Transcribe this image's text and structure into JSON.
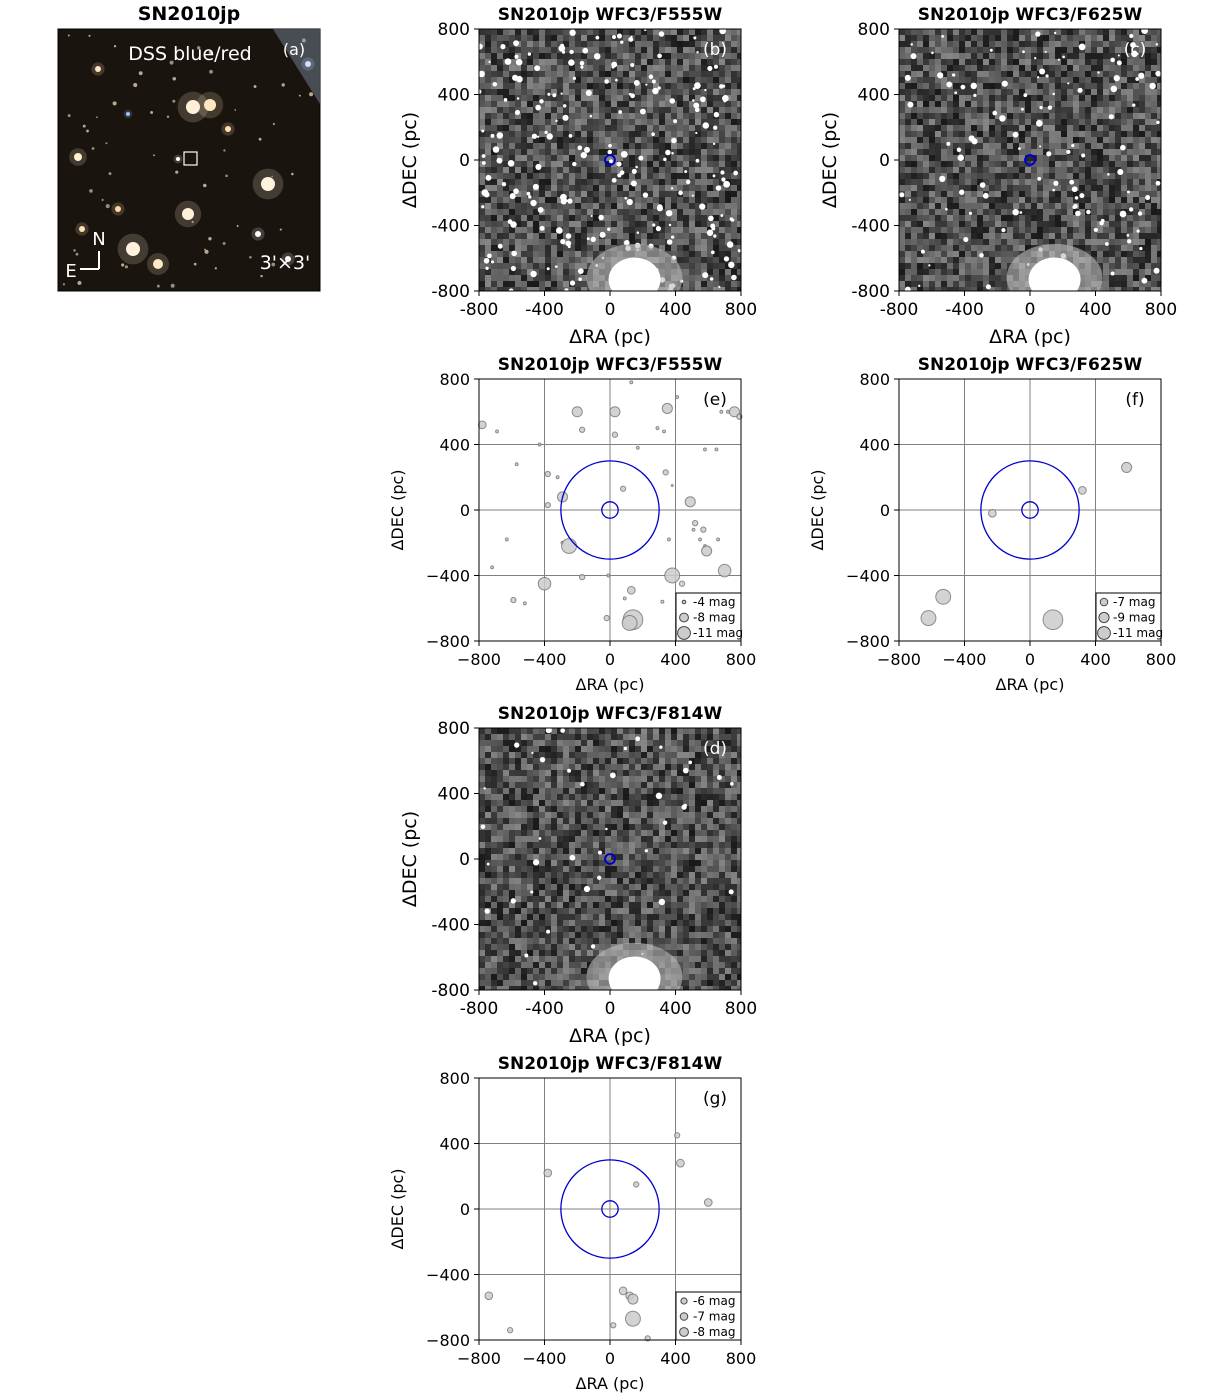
{
  "figure": {
    "object": "SN2010jp",
    "colors": {
      "circle": "#0000cc",
      "grid": "#808080",
      "marker_fill": "#cccccc",
      "marker_edge": "#777777",
      "dss_background": "#1a140e",
      "image_background": "#262626"
    }
  },
  "chart_data": [
    {
      "id": "a",
      "type": "image",
      "title": "SN2010jp",
      "panel_label": "(a)",
      "overlay_label": "DSS blue/red",
      "scale_label": "3'×3'",
      "compass": {
        "north": "N",
        "east": "E"
      }
    },
    {
      "id": "b",
      "type": "image",
      "title": "SN2010jp WFC3/F555W",
      "panel_label": "(b)",
      "xlabel": "ΔRA (pc)",
      "ylabel": "ΔDEC (pc)",
      "xlim": [
        -800,
        800
      ],
      "ylim": [
        -800,
        800
      ],
      "xticks": [
        "-800",
        "-400",
        "0",
        "400",
        "800"
      ],
      "yticks": [
        "-800",
        "-400",
        "0",
        "400",
        "800"
      ],
      "marker_circle_radius_pc": 30
    },
    {
      "id": "c",
      "type": "image",
      "title": "SN2010jp WFC3/F625W",
      "panel_label": "(c)",
      "xlabel": "ΔRA (pc)",
      "ylabel": "ΔDEC (pc)",
      "xlim": [
        -800,
        800
      ],
      "ylim": [
        -800,
        800
      ],
      "xticks": [
        "-800",
        "-400",
        "0",
        "400",
        "800"
      ],
      "yticks": [
        "-800",
        "-400",
        "0",
        "400",
        "800"
      ],
      "marker_circle_radius_pc": 30
    },
    {
      "id": "e",
      "type": "scatter",
      "title": "SN2010jp WFC3/F555W",
      "panel_label": "(e)",
      "xlabel": "ΔRA (pc)",
      "ylabel": "ΔDEC (pc)",
      "xlim": [
        -800,
        800
      ],
      "ylim": [
        -800,
        800
      ],
      "xticks": [
        "−800",
        "−400",
        "0",
        "400",
        "800"
      ],
      "yticks": [
        "−800",
        "−400",
        "0",
        "400",
        "800"
      ],
      "grid": true,
      "circle_radii_pc": [
        300,
        50
      ],
      "legend": {
        "position": "lower-right",
        "entries": [
          {
            "label": "-4 mag",
            "mag": -4
          },
          {
            "label": "-8 mag",
            "mag": -8
          },
          {
            "label": "-11 mag",
            "mag": -11
          }
        ]
      },
      "points": [
        {
          "x": 130,
          "y": 780,
          "mag": -4
        },
        {
          "x": -780,
          "y": 520,
          "mag": -6
        },
        {
          "x": -690,
          "y": 480,
          "mag": -4
        },
        {
          "x": -200,
          "y": 600,
          "mag": -7
        },
        {
          "x": 30,
          "y": 600,
          "mag": -7
        },
        {
          "x": -170,
          "y": 490,
          "mag": -5
        },
        {
          "x": 30,
          "y": 460,
          "mag": -5
        },
        {
          "x": 350,
          "y": 620,
          "mag": -7
        },
        {
          "x": 410,
          "y": 690,
          "mag": -4
        },
        {
          "x": 290,
          "y": 500,
          "mag": -4
        },
        {
          "x": 330,
          "y": 480,
          "mag": -4
        },
        {
          "x": 680,
          "y": 600,
          "mag": -4
        },
        {
          "x": 720,
          "y": 600,
          "mag": -4
        },
        {
          "x": 760,
          "y": 600,
          "mag": -7
        },
        {
          "x": 790,
          "y": 570,
          "mag": -5
        },
        {
          "x": -430,
          "y": 400,
          "mag": -4
        },
        {
          "x": 170,
          "y": 380,
          "mag": -4
        },
        {
          "x": 580,
          "y": 370,
          "mag": -4
        },
        {
          "x": 650,
          "y": 370,
          "mag": -4
        },
        {
          "x": -570,
          "y": 280,
          "mag": -4
        },
        {
          "x": -380,
          "y": 220,
          "mag": -5
        },
        {
          "x": -320,
          "y": 200,
          "mag": -4
        },
        {
          "x": 340,
          "y": 230,
          "mag": -5
        },
        {
          "x": 380,
          "y": 150,
          "mag": -3
        },
        {
          "x": -290,
          "y": 80,
          "mag": -7
        },
        {
          "x": 80,
          "y": 130,
          "mag": -5
        },
        {
          "x": -380,
          "y": 30,
          "mag": -5
        },
        {
          "x": 490,
          "y": 50,
          "mag": -7
        },
        {
          "x": 520,
          "y": -80,
          "mag": -5
        },
        {
          "x": 510,
          "y": -120,
          "mag": -4
        },
        {
          "x": 570,
          "y": -120,
          "mag": -5
        },
        {
          "x": 660,
          "y": -180,
          "mag": -4
        },
        {
          "x": 550,
          "y": -180,
          "mag": -4
        },
        {
          "x": -630,
          "y": -180,
          "mag": -4
        },
        {
          "x": 360,
          "y": -180,
          "mag": -4
        },
        {
          "x": -290,
          "y": -200,
          "mag": -4
        },
        {
          "x": -250,
          "y": -220,
          "mag": -9
        },
        {
          "x": 580,
          "y": -220,
          "mag": -4
        },
        {
          "x": 590,
          "y": -250,
          "mag": -7
        },
        {
          "x": -720,
          "y": -350,
          "mag": -4
        },
        {
          "x": -10,
          "y": -400,
          "mag": -4
        },
        {
          "x": 700,
          "y": -370,
          "mag": -8
        },
        {
          "x": 380,
          "y": -400,
          "mag": -9
        },
        {
          "x": -170,
          "y": -410,
          "mag": -5
        },
        {
          "x": -400,
          "y": -450,
          "mag": -8
        },
        {
          "x": 440,
          "y": -450,
          "mag": -5
        },
        {
          "x": 130,
          "y": -490,
          "mag": -6
        },
        {
          "x": 90,
          "y": -540,
          "mag": -4
        },
        {
          "x": -590,
          "y": -550,
          "mag": -5
        },
        {
          "x": -520,
          "y": -570,
          "mag": -4
        },
        {
          "x": 320,
          "y": -560,
          "mag": -4
        },
        {
          "x": -20,
          "y": -660,
          "mag": -5
        },
        {
          "x": 140,
          "y": -670,
          "mag": -11
        },
        {
          "x": 120,
          "y": -690,
          "mag": -9
        }
      ]
    },
    {
      "id": "f",
      "type": "scatter",
      "title": "SN2010jp WFC3/F625W",
      "panel_label": "(f)",
      "xlabel": "ΔRA (pc)",
      "ylabel": "ΔDEC (pc)",
      "xlim": [
        -800,
        800
      ],
      "ylim": [
        -800,
        800
      ],
      "xticks": [
        "−800",
        "−400",
        "0",
        "400",
        "800"
      ],
      "yticks": [
        "−800",
        "−400",
        "0",
        "400",
        "800"
      ],
      "grid": true,
      "circle_radii_pc": [
        300,
        50
      ],
      "legend": {
        "position": "lower-right",
        "entries": [
          {
            "label": "-7 mag",
            "mag": -7
          },
          {
            "label": "-9 mag",
            "mag": -9
          },
          {
            "label": "-11 mag",
            "mag": -11
          }
        ]
      },
      "points": [
        {
          "x": 590,
          "y": 260,
          "mag": -7
        },
        {
          "x": 320,
          "y": 120,
          "mag": -6
        },
        {
          "x": -230,
          "y": -20,
          "mag": -6
        },
        {
          "x": -530,
          "y": -530,
          "mag": -9
        },
        {
          "x": -620,
          "y": -660,
          "mag": -9
        },
        {
          "x": 140,
          "y": -670,
          "mag": -11
        }
      ]
    },
    {
      "id": "d",
      "type": "image",
      "title": "SN2010jp WFC3/F814W",
      "panel_label": "(d)",
      "xlabel": "ΔRA (pc)",
      "ylabel": "ΔDEC (pc)",
      "xlim": [
        -800,
        800
      ],
      "ylim": [
        -800,
        800
      ],
      "xticks": [
        "-800",
        "-400",
        "0",
        "400",
        "800"
      ],
      "yticks": [
        "-800",
        "-400",
        "0",
        "400",
        "800"
      ],
      "marker_circle_radius_pc": 30
    },
    {
      "id": "g",
      "type": "scatter",
      "title": "SN2010jp WFC3/F814W",
      "panel_label": "(g)",
      "xlabel": "ΔRA (pc)",
      "ylabel": "ΔDEC (pc)",
      "xlim": [
        -800,
        800
      ],
      "ylim": [
        -800,
        800
      ],
      "xticks": [
        "−800",
        "−400",
        "0",
        "400",
        "800"
      ],
      "yticks": [
        "−800",
        "−400",
        "0",
        "400",
        "800"
      ],
      "grid": true,
      "circle_radii_pc": [
        300,
        50
      ],
      "legend": {
        "position": "lower-right",
        "entries": [
          {
            "label": "-6 mag",
            "mag": -6
          },
          {
            "label": "-7 mag",
            "mag": -7
          },
          {
            "label": "-8 mag",
            "mag": -8
          }
        ]
      },
      "points": [
        {
          "x": 410,
          "y": 450,
          "mag": -5
        },
        {
          "x": 430,
          "y": 280,
          "mag": -6
        },
        {
          "x": -380,
          "y": 220,
          "mag": -6
        },
        {
          "x": 160,
          "y": 150,
          "mag": -5
        },
        {
          "x": 600,
          "y": 40,
          "mag": -6
        },
        {
          "x": 80,
          "y": -500,
          "mag": -6
        },
        {
          "x": 120,
          "y": -530,
          "mag": -6
        },
        {
          "x": 140,
          "y": -550,
          "mag": -7
        },
        {
          "x": -740,
          "y": -530,
          "mag": -6
        },
        {
          "x": 140,
          "y": -670,
          "mag": -9
        },
        {
          "x": 20,
          "y": -710,
          "mag": -5
        },
        {
          "x": -610,
          "y": -740,
          "mag": -5
        },
        {
          "x": 230,
          "y": -790,
          "mag": -5
        }
      ]
    }
  ]
}
